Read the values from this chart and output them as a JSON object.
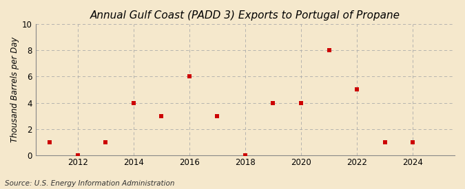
{
  "title": "Annual Gulf Coast (PADD 3) Exports to Portugal of Propane",
  "ylabel": "Thousand Barrels per Day",
  "source": "Source: U.S. Energy Information Administration",
  "years": [
    2011,
    2012,
    2013,
    2014,
    2015,
    2016,
    2017,
    2018,
    2019,
    2020,
    2021,
    2022,
    2023,
    2024
  ],
  "values": [
    1,
    0,
    1,
    4,
    3,
    6,
    3,
    0,
    4,
    4,
    8,
    5,
    1,
    1
  ],
  "marker_color": "#cc0000",
  "marker": "s",
  "marker_size": 4,
  "background_color": "#f5e8cc",
  "plot_bg_color": "#f5e8cc",
  "grid_color": "#aaaaaa",
  "ylim": [
    0,
    10
  ],
  "yticks": [
    0,
    2,
    4,
    6,
    8,
    10
  ],
  "xticks": [
    2012,
    2014,
    2016,
    2018,
    2020,
    2022,
    2024
  ],
  "xlim": [
    2010.5,
    2025.5
  ],
  "title_fontsize": 11,
  "label_fontsize": 8.5,
  "source_fontsize": 7.5
}
